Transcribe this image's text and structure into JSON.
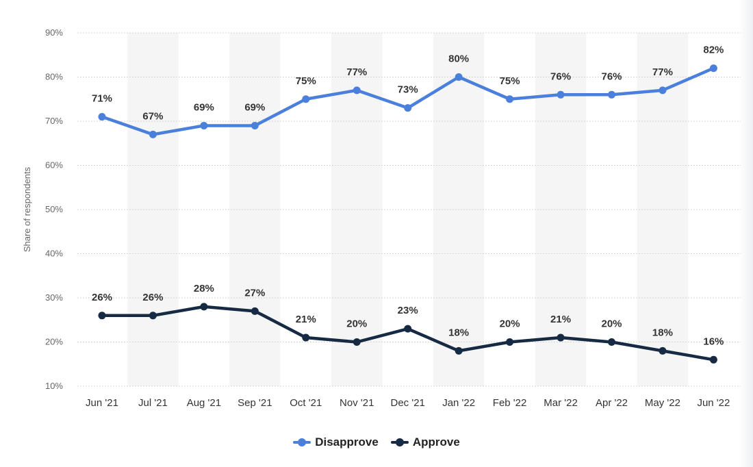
{
  "chart_data": {
    "type": "line",
    "ylabel": "Share of respondents",
    "xlabel": "",
    "categories": [
      "Jun '21",
      "Jul '21",
      "Aug '21",
      "Sep '21",
      "Oct '21",
      "Nov '21",
      "Dec '21",
      "Jan '22",
      "Feb '22",
      "Mar '22",
      "Apr '22",
      "May '22",
      "Jun '22"
    ],
    "y_ticks": [
      "10%",
      "20%",
      "30%",
      "40%",
      "50%",
      "60%",
      "70%",
      "80%",
      "90%"
    ],
    "ylim": [
      10,
      90
    ],
    "grid": true,
    "legend_position": "bottom-center",
    "series": [
      {
        "name": "Disapprove",
        "color": "#4a80dc",
        "values": [
          71,
          67,
          69,
          69,
          75,
          77,
          73,
          80,
          75,
          76,
          76,
          77,
          82
        ],
        "labels": [
          "71%",
          "67%",
          "69%",
          "69%",
          "75%",
          "77%",
          "73%",
          "80%",
          "75%",
          "76%",
          "76%",
          "77%",
          "82%"
        ]
      },
      {
        "name": "Approve",
        "color": "#172a44",
        "values": [
          26,
          26,
          28,
          27,
          21,
          20,
          23,
          18,
          20,
          21,
          20,
          18,
          16
        ],
        "labels": [
          "26%",
          "26%",
          "28%",
          "27%",
          "21%",
          "20%",
          "23%",
          "18%",
          "20%",
          "21%",
          "20%",
          "18%",
          "16%"
        ]
      }
    ]
  }
}
